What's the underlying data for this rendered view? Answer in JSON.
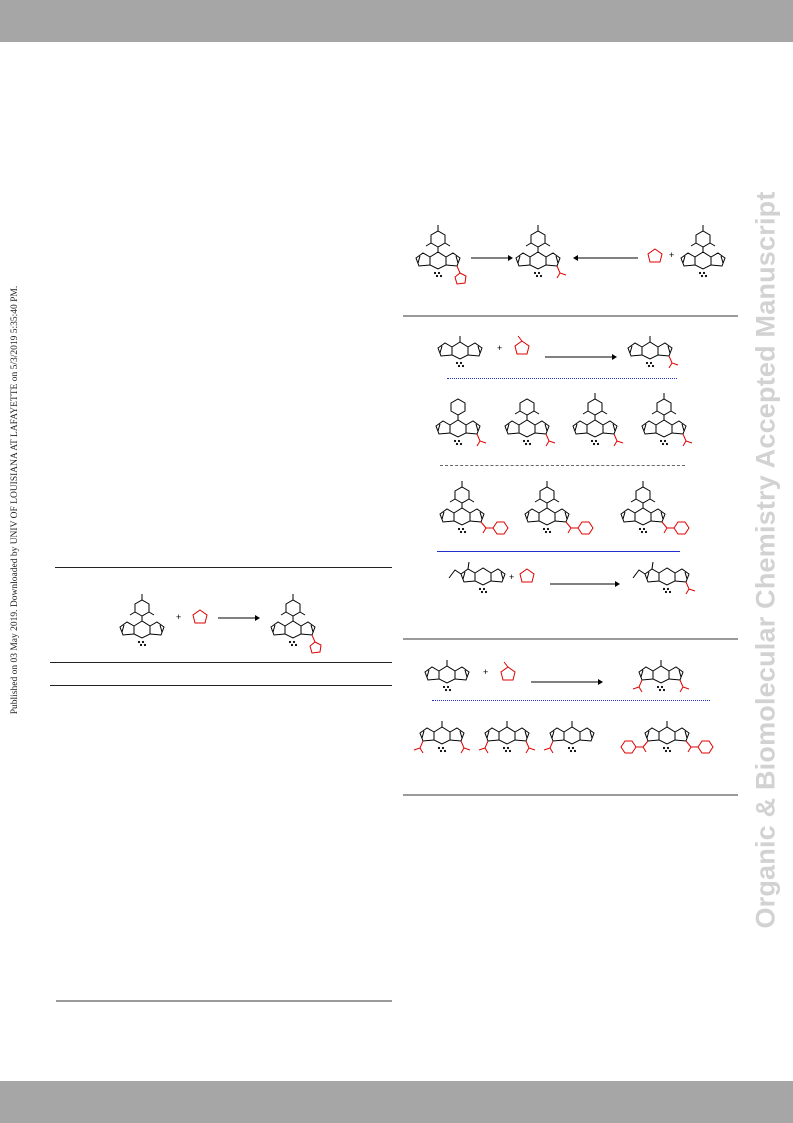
{
  "header": {
    "color": "#a6a6a6"
  },
  "footer": {
    "color": "#a6a6a6"
  },
  "side_left": {
    "text": "Published on 03 May 2019. Downloaded by UNIV OF LOUISIANA AT LAFAYETTE on 5/3/2019 5:35:40 PM."
  },
  "side_right": {
    "text": "Organic & Biomolecular Chemistry Accepted Manuscript",
    "color": "#d2d2d2"
  },
  "schemes": {
    "plus": "+"
  },
  "colors": {
    "bond": "#000000",
    "substituent": "#e00000",
    "divider_blue": "#2230cc"
  }
}
